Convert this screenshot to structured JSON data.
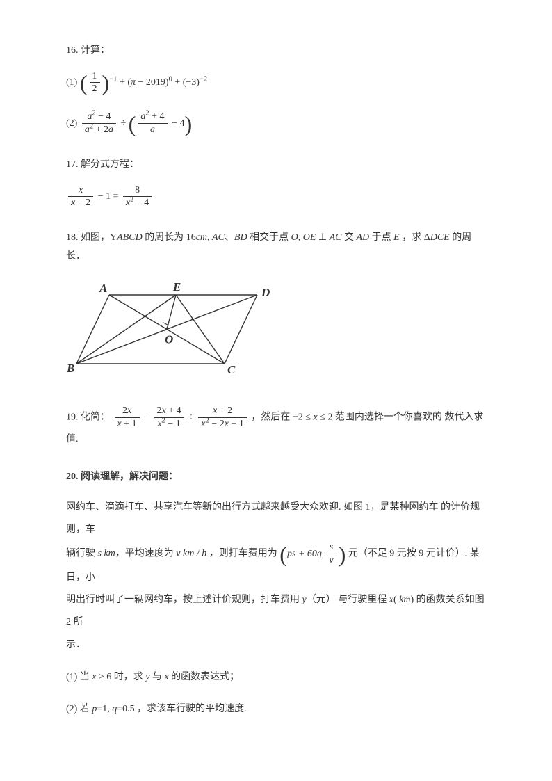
{
  "q16": {
    "title": "16. 计算：",
    "part1_label": "(1)",
    "part2_label": "(2)"
  },
  "q17": {
    "title": "17. 解分式方程："
  },
  "q18": {
    "number": "18.",
    "text_a": " 如图，Y",
    "var_abcd": "ABCD",
    "text_b": " 的周长为 ",
    "val_16": "16",
    "var_cm": "cm",
    "text_c": ", ",
    "var_ac": "AC",
    "text_d": "、",
    "var_bd": "BD",
    "text_e": " 相交于点 ",
    "var_o": "O",
    "text_f": ", ",
    "var_oe": "OE",
    "text_g": " ⊥ ",
    "text_h": " 交 ",
    "var_ad": "AD",
    "text_i": " 于点 ",
    "var_e": "E",
    "text_j": " ，求 Δ",
    "var_dce": "DCE",
    "text_k": " 的周长．"
  },
  "q18_fig": {
    "label_A": "A",
    "label_B": "B",
    "label_C": "C",
    "label_D": "D",
    "label_E": "E",
    "label_O": "O",
    "stroke": "#333333",
    "stroke_width": 1.4,
    "font_size": 17
  },
  "q19": {
    "number": "19. 化简：",
    "tail": "，然后在 −2 ≤ ",
    "var_x": "x",
    "tail2": " ≤ 2 范围内选择一个你喜欢的 数代入求值."
  },
  "q20": {
    "title": "20. 阅读理解，解决问题：",
    "p1_a": "网约车、滴滴打车、共享汽车等新的出行方式越来越受大众欢迎. 如图 1，是某种网约车 的计价规则，车",
    "p1_b": "辆行驶 ",
    "var_s": "s",
    "var_km": " km",
    "p1_c": "，平均速度为 ",
    "var_v": "v",
    "var_kmh": " km / h",
    "p1_d": " ，则打车费用为 ",
    "expr_ps": "ps",
    "expr_plus60q": " + 60q",
    "expr_s": "s",
    "expr_v": "v",
    "p1_e": " 元（不足 9 元按 9 元计价）. 某日，小",
    "p1_f": "明出行时叫了一辆网约车，按上述计价规则，打车费用 ",
    "var_y": "y",
    "p1_g": "（元） 与行驶里程 ",
    "var_x": "x",
    "p1_h": " 的函数关系如图 2 所",
    "p1_i": "示．",
    "part1": "(1) 当 ",
    "part1_cond": " ≥ 6 时，求 ",
    "part1_b": " 与 ",
    "part1_c": " 的函数表达式；",
    "part2": "(2) 若 ",
    "var_p": "p",
    "part2_eq1": "=1, ",
    "var_q": "q",
    "part2_eq2": "=0.5",
    "part2_c": " ，求该车行驶的平均速度."
  }
}
